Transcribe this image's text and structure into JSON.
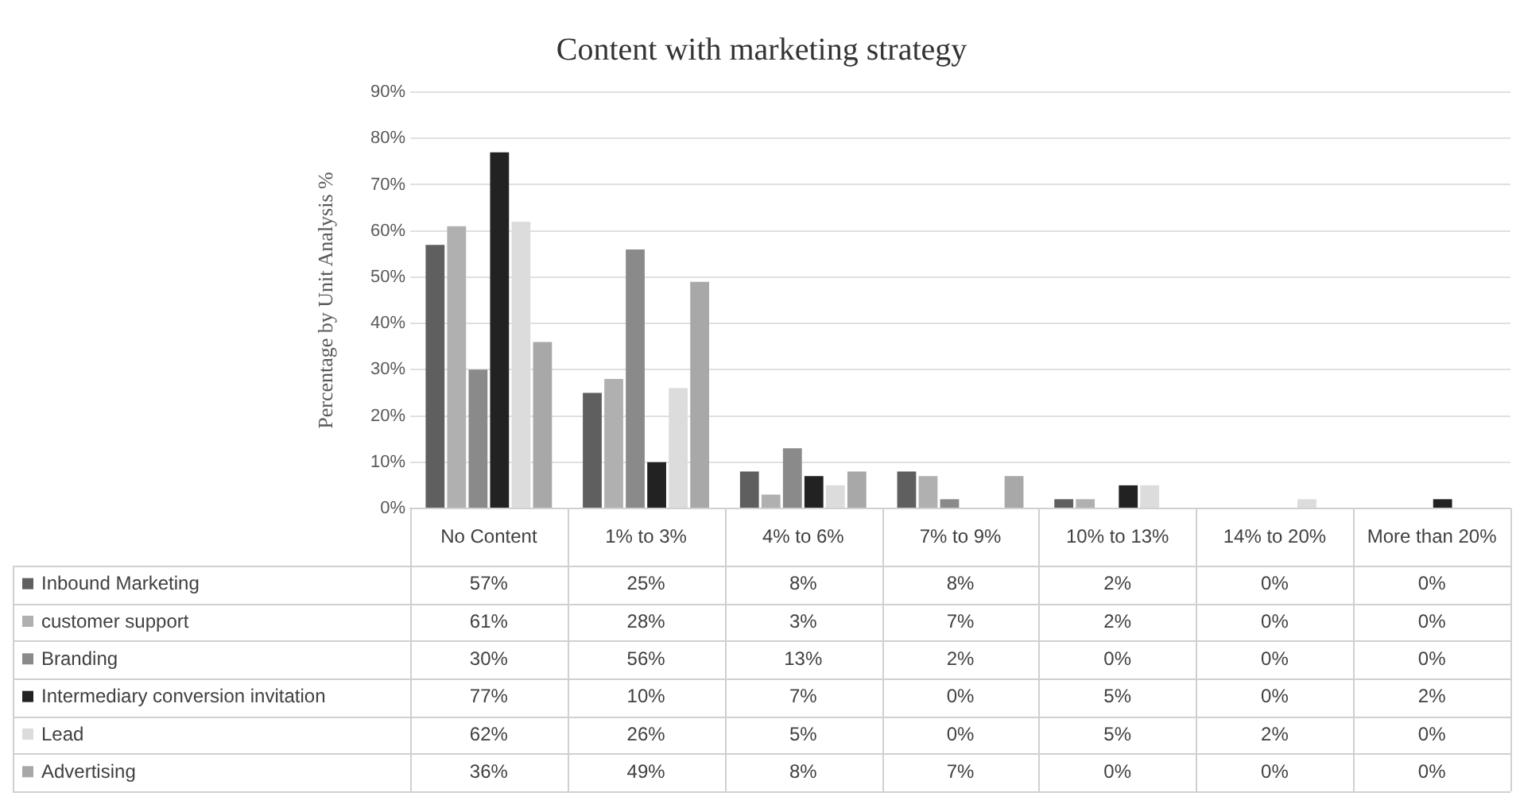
{
  "chart_data": {
    "type": "bar",
    "title": "Content with marketing strategy",
    "ylabel": "Percentage by Unit Analysis %",
    "categories": [
      "No Content",
      "1% to 3%",
      "4% to 6%",
      "7% to 9%",
      "10% to 13%",
      "14% to 20%",
      "More than 20%"
    ],
    "series": [
      {
        "name": "Inbound Marketing",
        "color": "#5f5f5f",
        "values": [
          57,
          25,
          8,
          8,
          2,
          0,
          0
        ],
        "value_labels": [
          "57%",
          "25%",
          "8%",
          "8%",
          "2%",
          "0%",
          "0%"
        ]
      },
      {
        "name": "customer support",
        "color": "#b0b0b0",
        "values": [
          61,
          28,
          3,
          7,
          2,
          0,
          0
        ],
        "value_labels": [
          "61%",
          "28%",
          "3%",
          "7%",
          "2%",
          "0%",
          "0%"
        ]
      },
      {
        "name": "Branding",
        "color": "#8a8a8a",
        "values": [
          30,
          56,
          13,
          2,
          0,
          0,
          0
        ],
        "value_labels": [
          "30%",
          "56%",
          "13%",
          "2%",
          "0%",
          "0%",
          "0%"
        ]
      },
      {
        "name": "Intermediary conversion invitation",
        "color": "#222222",
        "values": [
          77,
          10,
          7,
          0,
          5,
          0,
          2
        ],
        "value_labels": [
          "77%",
          "10%",
          "7%",
          "0%",
          "5%",
          "0%",
          "2%"
        ]
      },
      {
        "name": "Lead",
        "color": "#dcdcdc",
        "values": [
          62,
          26,
          5,
          0,
          5,
          2,
          0
        ],
        "value_labels": [
          "62%",
          "26%",
          "5%",
          "0%",
          "5%",
          "2%",
          "0%"
        ]
      },
      {
        "name": "Advertising",
        "color": "#a8a8a8",
        "values": [
          36,
          49,
          8,
          7,
          0,
          0,
          0
        ],
        "value_labels": [
          "36%",
          "49%",
          "8%",
          "7%",
          "0%",
          "0%",
          "0%"
        ]
      }
    ],
    "ylim": [
      0,
      90
    ],
    "yticks": [
      {
        "value": 0,
        "label": "0%"
      },
      {
        "value": 10,
        "label": "10%"
      },
      {
        "value": 20,
        "label": "20%"
      },
      {
        "value": 30,
        "label": "30%"
      },
      {
        "value": 40,
        "label": "40%"
      },
      {
        "value": 50,
        "label": "50%"
      },
      {
        "value": 60,
        "label": "60%"
      },
      {
        "value": 70,
        "label": "70%"
      },
      {
        "value": 80,
        "label": "80%"
      },
      {
        "value": 90,
        "label": "90%"
      }
    ],
    "grid": "y",
    "legend": "bottom"
  }
}
